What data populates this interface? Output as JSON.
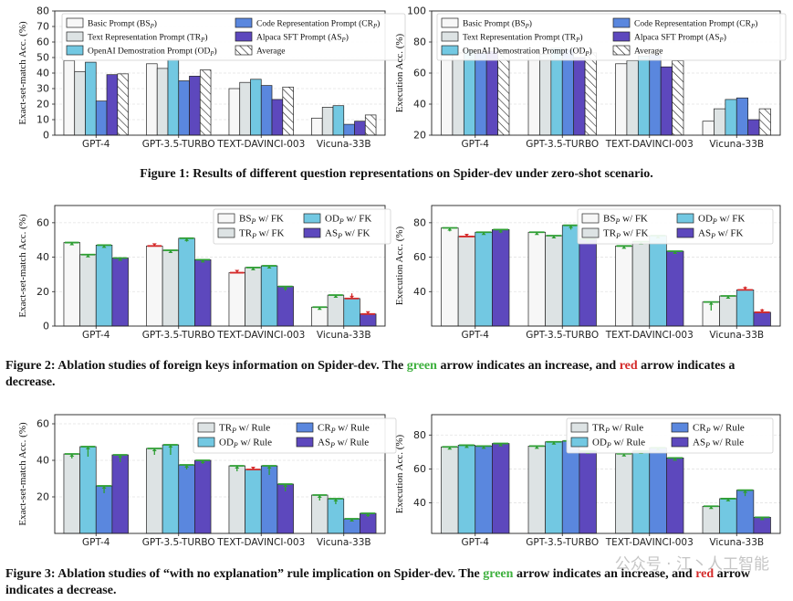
{
  "colors": {
    "BS": "#f7f7f7",
    "TR": "#dde3e4",
    "OD": "#72c8e2",
    "CR": "#5a87de",
    "AS": "#5d48bd",
    "avg": "#ffffff",
    "increase": "#2e9e33",
    "decrease": "#d42a2a"
  },
  "captions": {
    "fig1": "Figure 1: Results of different question representations on Spider-dev under zero-shot scenario.",
    "fig2_a": "Figure 2: Ablation studies of foreign keys information on Spider-dev. The ",
    "fig2_green": "green",
    "fig2_b": " arrow indicates an increase, and ",
    "fig2_red": "red",
    "fig2_c": " arrow indicates a decrease.",
    "fig3_a": "Figure 3: Ablation studies of “with no explanation” rule implication on Spider-dev. The ",
    "fig3_green": "green",
    "fig3_b": " arrow indicates an increase, and ",
    "fig3_red": "red",
    "fig3_c": " arrow indicates a decrease."
  },
  "watermark": "公众号 · 江丶人工智能",
  "chart_data": [
    {
      "id": "fig1-left",
      "type": "bar",
      "categories": [
        "GPT-4",
        "GPT-3.5-TURBO",
        "TEXT-DAVINCI-003",
        "Vicuna-33B"
      ],
      "ylabel": "Exact-set-match Acc. (%)",
      "ylim": [
        0,
        80
      ],
      "yticks": [
        0,
        10,
        20,
        30,
        40,
        50,
        60,
        70,
        80
      ],
      "legend_cols": 2,
      "series": [
        {
          "name": "Basic Prompt (BS",
          "sub": "P",
          "tail": ")",
          "key": "BS",
          "values": [
            48,
            46,
            30,
            11
          ]
        },
        {
          "name": "Text Representation Prompt (TR",
          "sub": "P",
          "tail": ")",
          "key": "TR",
          "values": [
            41,
            43,
            34,
            18
          ]
        },
        {
          "name": "OpenAI Demostration Prompt (OD",
          "sub": "P",
          "tail": ")",
          "key": "OD",
          "values": [
            47,
            49,
            36,
            19
          ]
        },
        {
          "name": "Code Representation Prompt (CR",
          "sub": "P",
          "tail": ")",
          "key": "CR",
          "values": [
            22,
            35,
            32,
            7
          ]
        },
        {
          "name": "Alpaca SFT Prompt (AS",
          "sub": "P",
          "tail": ")",
          "key": "AS",
          "values": [
            39,
            38,
            23,
            9
          ]
        },
        {
          "name": "Average",
          "sub": "",
          "tail": "",
          "key": "avg",
          "hatch": true,
          "values": [
            39.5,
            42,
            31,
            13
          ]
        }
      ]
    },
    {
      "id": "fig1-right",
      "type": "bar",
      "categories": [
        "GPT-4",
        "GPT-3.5-TURBO",
        "TEXT-DAVINCI-003",
        "Vicuna-33B"
      ],
      "ylabel": "Execution Acc. (%)",
      "ylim": [
        20,
        100
      ],
      "yticks": [
        20,
        40,
        60,
        80,
        100
      ],
      "legend_cols": 2,
      "series": [
        {
          "name": "Basic Prompt (BS",
          "sub": "P",
          "tail": ")",
          "key": "BS",
          "values": [
            75,
            73,
            66,
            29
          ]
        },
        {
          "name": "Text Representation Prompt (TR",
          "sub": "P",
          "tail": ")",
          "key": "TR",
          "values": [
            73,
            72,
            68,
            37
          ]
        },
        {
          "name": "OpenAI Demostration Prompt (OD",
          "sub": "P",
          "tail": ")",
          "key": "OD",
          "values": [
            75,
            76,
            71,
            43
          ]
        },
        {
          "name": "Code Representation Prompt (CR",
          "sub": "P",
          "tail": ")",
          "key": "CR",
          "values": [
            73,
            75,
            72,
            44
          ]
        },
        {
          "name": "Alpaca SFT Prompt (AS",
          "sub": "P",
          "tail": ")",
          "key": "AS",
          "values": [
            74,
            70,
            64,
            30
          ]
        },
        {
          "name": "Average",
          "sub": "",
          "tail": "",
          "key": "avg",
          "hatch": true,
          "values": [
            74,
            73,
            68,
            37
          ]
        }
      ]
    },
    {
      "id": "fig2-left",
      "type": "bar",
      "categories": [
        "GPT-4",
        "GPT-3.5-TURBO",
        "TEXT-DAVINCI-003",
        "Vicuna-33B"
      ],
      "ylabel": "Exact-set-match Acc. (%)",
      "ylim": [
        0,
        70
      ],
      "yticks": [
        0,
        20,
        40,
        60
      ],
      "legend_cols": 2,
      "series": [
        {
          "name": "BS",
          "sub": "P",
          "tail": " w/ FK",
          "key": "BS",
          "values": [
            48.5,
            46.5,
            31,
            11
          ],
          "baseline": [
            48,
            47.5,
            32.5,
            11
          ]
        },
        {
          "name": "TR",
          "sub": "P",
          "tail": " w/ FK",
          "key": "TR",
          "values": [
            41.5,
            44,
            34,
            18
          ],
          "baseline": [
            41.5,
            43,
            34,
            18
          ]
        },
        {
          "name": "OD",
          "sub": "P",
          "tail": " w/ FK",
          "key": "OD",
          "values": [
            47,
            51,
            35,
            16
          ],
          "baseline": [
            46,
            49,
            34,
            19
          ]
        },
        {
          "name": "AS",
          "sub": "P",
          "tail": " w/ FK",
          "key": "AS",
          "values": [
            39.5,
            38.5,
            23,
            7
          ],
          "baseline": [
            39.5,
            38,
            20.5,
            8.5
          ]
        }
      ]
    },
    {
      "id": "fig2-right",
      "type": "bar",
      "categories": [
        "GPT-4",
        "GPT-3.5-TURBO",
        "TEXT-DAVINCI-003",
        "Vicuna-33B"
      ],
      "ylabel": "Execution Acc. (%)",
      "ylim": [
        20,
        90
      ],
      "yticks": [
        40,
        60,
        80
      ],
      "legend_cols": 2,
      "series": [
        {
          "name": "BS",
          "sub": "P",
          "tail": " w/ FK",
          "key": "BS",
          "values": [
            77,
            74.5,
            66.5,
            34
          ],
          "baseline": [
            75,
            73,
            66,
            29
          ]
        },
        {
          "name": "TR",
          "sub": "P",
          "tail": " w/ FK",
          "key": "TR",
          "values": [
            72,
            72.5,
            69,
            37.5
          ],
          "baseline": [
            72.5,
            72,
            68,
            37
          ]
        },
        {
          "name": "OD",
          "sub": "P",
          "tail": " w/ FK",
          "key": "OD",
          "values": [
            74.5,
            78.5,
            72.5,
            41
          ],
          "baseline": [
            74.5,
            76,
            71,
            43
          ]
        },
        {
          "name": "AS",
          "sub": "P",
          "tail": " w/ FK",
          "key": "AS",
          "values": [
            76,
            70.5,
            63.5,
            28
          ],
          "baseline": [
            74,
            70,
            62,
            30
          ]
        }
      ]
    },
    {
      "id": "fig3-left",
      "type": "bar",
      "categories": [
        "GPT-4",
        "GPT-3.5-TURBO",
        "TEXT-DAVINCI-003",
        "Vicuna-33B"
      ],
      "ylabel": "Exact-set-match Acc. (%)",
      "ylim": [
        0,
        65
      ],
      "yticks": [
        20,
        40,
        60
      ],
      "legend_cols": 2,
      "series": [
        {
          "name": "TR",
          "sub": "P",
          "tail": " w/ Rule",
          "key": "TR",
          "values": [
            43.5,
            46.5,
            37,
            21
          ],
          "baseline": [
            41,
            43,
            34,
            18
          ]
        },
        {
          "name": "OD",
          "sub": "P",
          "tail": " w/ Rule",
          "key": "OD",
          "values": [
            47.5,
            48.5,
            35,
            19
          ],
          "baseline": [
            42,
            43,
            36,
            16
          ]
        },
        {
          "name": "CR",
          "sub": "P",
          "tail": " w/ Rule",
          "key": "CR",
          "values": [
            26,
            37.5,
            37,
            8
          ],
          "baseline": [
            22,
            35,
            32,
            7
          ]
        },
        {
          "name": "AS",
          "sub": "P",
          "tail": " w/ Rule",
          "key": "AS",
          "values": [
            43,
            40,
            27,
            11
          ],
          "baseline": [
            39,
            38,
            23,
            9
          ]
        }
      ]
    },
    {
      "id": "fig3-right",
      "type": "bar",
      "categories": [
        "GPT-4",
        "GPT-3.5-TURBO",
        "TEXT-DAVINCI-003",
        "Vicuna-33B"
      ],
      "ylabel": "Execution Acc. (%)",
      "ylim": [
        22,
        92
      ],
      "yticks": [
        40,
        60,
        80
      ],
      "legend_cols": 2,
      "series": [
        {
          "name": "TR",
          "sub": "P",
          "tail": " w/ Rule",
          "key": "TR",
          "values": [
            73,
            73.5,
            69,
            38
          ],
          "baseline": [
            72.5,
            72.5,
            68,
            37
          ]
        },
        {
          "name": "OD",
          "sub": "P",
          "tail": " w/ Rule",
          "key": "OD",
          "values": [
            74,
            76,
            70.5,
            42.5
          ],
          "baseline": [
            73.5,
            75,
            70,
            42
          ]
        },
        {
          "name": "CR",
          "sub": "P",
          "tail": " w/ Rule",
          "key": "CR",
          "values": [
            73.5,
            76.5,
            72.5,
            47.5
          ],
          "baseline": [
            72.5,
            75,
            71.5,
            44
          ]
        },
        {
          "name": "AS",
          "sub": "P",
          "tail": " w/ Rule",
          "key": "AS",
          "values": [
            75,
            70.5,
            66.5,
            31.5
          ],
          "baseline": [
            74.5,
            70,
            66,
            31
          ]
        }
      ]
    }
  ]
}
